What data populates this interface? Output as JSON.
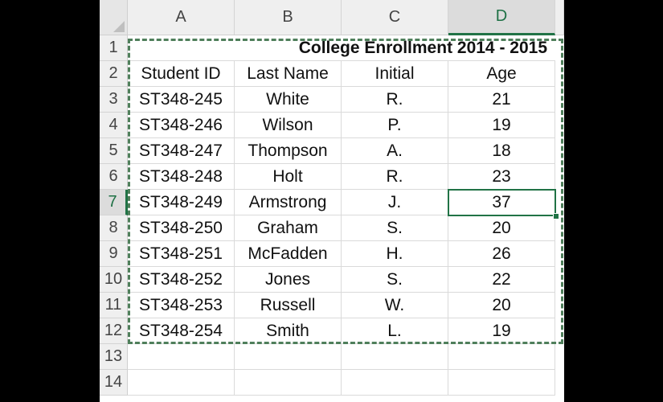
{
  "columns": [
    "A",
    "B",
    "C",
    "D"
  ],
  "row_numbers": [
    "1",
    "2",
    "3",
    "4",
    "5",
    "6",
    "7",
    "8",
    "9",
    "10",
    "11",
    "12",
    "13",
    "14"
  ],
  "title": "College Enrollment 2014 - 2015",
  "headers": [
    "Student ID",
    "Last Name",
    "Initial",
    "Age"
  ],
  "rows": [
    [
      "ST348-245",
      "White",
      "R.",
      "21"
    ],
    [
      "ST348-246",
      "Wilson",
      "P.",
      "19"
    ],
    [
      "ST348-247",
      "Thompson",
      "A.",
      "18"
    ],
    [
      "ST348-248",
      "Holt",
      "R.",
      "23"
    ],
    [
      "ST348-249",
      "Armstrong",
      "J.",
      "37"
    ],
    [
      "ST348-250",
      "Graham",
      "S.",
      "20"
    ],
    [
      "ST348-251",
      "McFadden",
      "H.",
      "26"
    ],
    [
      "ST348-252",
      "Jones",
      "S.",
      "22"
    ],
    [
      "ST348-253",
      "Russell",
      "W.",
      "20"
    ],
    [
      "ST348-254",
      "Smith",
      "L.",
      "19"
    ]
  ],
  "selection": {
    "active_cell": "D7",
    "copy_range": "A1:D12"
  },
  "colors": {
    "selection": "#217346",
    "marquee": "#4f7f5b",
    "header_bg": "#efefef"
  }
}
